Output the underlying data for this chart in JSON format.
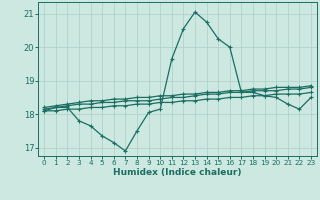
{
  "title": "",
  "xlabel": "Humidex (Indice chaleur)",
  "ylabel": "",
  "xlim": [
    -0.5,
    23.5
  ],
  "ylim": [
    16.75,
    21.35
  ],
  "yticks": [
    17,
    18,
    19,
    20,
    21
  ],
  "xticks": [
    0,
    1,
    2,
    3,
    4,
    5,
    6,
    7,
    8,
    9,
    10,
    11,
    12,
    13,
    14,
    15,
    16,
    17,
    18,
    19,
    20,
    21,
    22,
    23
  ],
  "bg_color": "#cce8e0",
  "grid_color": "#aacfc8",
  "line_color": "#1a6e62",
  "lines": [
    {
      "x": [
        0,
        1,
        2,
        3,
        4,
        5,
        6,
        7,
        8,
        9,
        10,
        11,
        12,
        13,
        14,
        15,
        16,
        17,
        18,
        19,
        20,
        21,
        22,
        23
      ],
      "y": [
        18.1,
        18.2,
        18.2,
        17.8,
        17.65,
        17.35,
        17.15,
        16.9,
        17.5,
        18.05,
        18.15,
        19.65,
        20.55,
        21.05,
        20.75,
        20.25,
        20.0,
        18.65,
        18.65,
        18.55,
        18.5,
        18.3,
        18.15,
        18.5
      ]
    },
    {
      "x": [
        0,
        1,
        2,
        3,
        4,
        5,
        6,
        7,
        8,
        9,
        10,
        11,
        12,
        13,
        14,
        15,
        16,
        17,
        18,
        19,
        20,
        21,
        22,
        23
      ],
      "y": [
        18.15,
        18.2,
        18.25,
        18.3,
        18.3,
        18.35,
        18.35,
        18.4,
        18.4,
        18.4,
        18.45,
        18.5,
        18.5,
        18.55,
        18.6,
        18.6,
        18.65,
        18.65,
        18.7,
        18.7,
        18.7,
        18.75,
        18.75,
        18.8
      ]
    },
    {
      "x": [
        0,
        1,
        2,
        3,
        4,
        5,
        6,
        7,
        8,
        9,
        10,
        11,
        12,
        13,
        14,
        15,
        16,
        17,
        18,
        19,
        20,
        21,
        22,
        23
      ],
      "y": [
        18.2,
        18.25,
        18.3,
        18.35,
        18.4,
        18.4,
        18.45,
        18.45,
        18.5,
        18.5,
        18.55,
        18.55,
        18.6,
        18.6,
        18.65,
        18.65,
        18.7,
        18.7,
        18.75,
        18.75,
        18.8,
        18.8,
        18.8,
        18.85
      ]
    },
    {
      "x": [
        0,
        1,
        2,
        3,
        4,
        5,
        6,
        7,
        8,
        9,
        10,
        11,
        12,
        13,
        14,
        15,
        16,
        17,
        18,
        19,
        20,
        21,
        22,
        23
      ],
      "y": [
        18.1,
        18.1,
        18.15,
        18.15,
        18.2,
        18.2,
        18.25,
        18.25,
        18.3,
        18.3,
        18.35,
        18.35,
        18.4,
        18.4,
        18.45,
        18.45,
        18.5,
        18.5,
        18.55,
        18.55,
        18.6,
        18.6,
        18.6,
        18.65
      ]
    }
  ]
}
